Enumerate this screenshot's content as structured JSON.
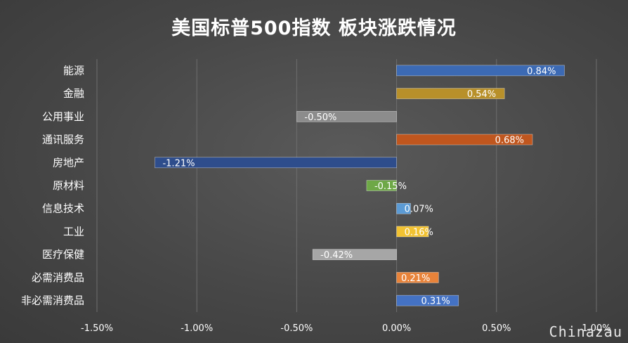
{
  "chart_data": {
    "type": "bar",
    "orientation": "horizontal",
    "title": "美国标普500指数 板块涨跌情况",
    "categories": [
      "能源",
      "金融",
      "公用事业",
      "通讯服务",
      "房地产",
      "原材料",
      "信息技术",
      "工业",
      "医疗保健",
      "必需消费品",
      "非必需消费品"
    ],
    "values": [
      0.84,
      0.54,
      -0.5,
      0.68,
      -1.21,
      -0.15,
      0.07,
      0.16,
      -0.42,
      0.21,
      0.31
    ],
    "value_labels": [
      "0.84%",
      "0.54%",
      "-0.50%",
      "0.68%",
      "-1.21%",
      "-0.15%",
      "0.07%",
      "0.16%",
      "-0.42%",
      "0.21%",
      "0.31%"
    ],
    "bar_colors": [
      "#3c6ab4",
      "#b8902a",
      "#8c8c8c",
      "#c0561e",
      "#2e4d8c",
      "#6ea847",
      "#5b9bd5",
      "#f2c232",
      "#a6a6a6",
      "#e8833a",
      "#4472c4"
    ],
    "xlim": [
      -1.5,
      1.0
    ],
    "xticks": [
      -1.5,
      -1.0,
      -0.5,
      0.0,
      0.5,
      1.0
    ],
    "xtick_labels": [
      "-1.50%",
      "-1.00%",
      "-0.50%",
      "0.00%",
      "0.50%",
      "1.00%"
    ],
    "grid": true,
    "unit": "%"
  },
  "watermark": "Chinazau"
}
